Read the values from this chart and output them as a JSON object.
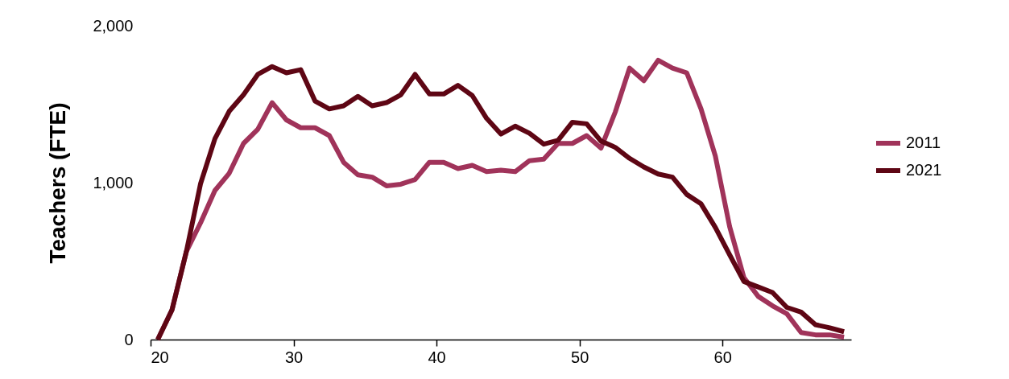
{
  "chart_data": {
    "type": "line",
    "ylabel": "Teachers (FTE)",
    "x": [
      20.5,
      21.5,
      22.5,
      23.5,
      24.5,
      25.5,
      26.5,
      27.5,
      28.5,
      29.5,
      30.5,
      31.5,
      32.5,
      33.5,
      34.5,
      35.5,
      36.5,
      37.5,
      38.5,
      39.5,
      40.5,
      41.5,
      42.5,
      43.5,
      44.5,
      45.5,
      46.5,
      47.5,
      48.5,
      49.5,
      50.5,
      51.5,
      52.5,
      53.5,
      54.5,
      55.5,
      56.5,
      57.5,
      58.5,
      59.5,
      60.5,
      61.5,
      62.5,
      63.5,
      64.5,
      65.5,
      66.5,
      67.5,
      68.5
    ],
    "series": [
      {
        "name": "2011",
        "color": "#a0335a",
        "values": [
          0,
          190,
          560,
          745,
          950,
          1060,
          1250,
          1340,
          1510,
          1400,
          1350,
          1350,
          1300,
          1130,
          1050,
          1035,
          980,
          990,
          1020,
          1130,
          1130,
          1090,
          1110,
          1070,
          1080,
          1070,
          1140,
          1150,
          1250,
          1250,
          1300,
          1220,
          1450,
          1730,
          1650,
          1780,
          1730,
          1700,
          1470,
          1170,
          720,
          395,
          275,
          215,
          165,
          45,
          30,
          30,
          15
        ]
      },
      {
        "name": "2021",
        "color": "#5e0614",
        "values": [
          0,
          190,
          560,
          995,
          1280,
          1455,
          1560,
          1690,
          1740,
          1700,
          1720,
          1520,
          1470,
          1490,
          1550,
          1490,
          1510,
          1560,
          1690,
          1565,
          1565,
          1620,
          1555,
          1410,
          1310,
          1360,
          1315,
          1245,
          1270,
          1385,
          1375,
          1265,
          1225,
          1155,
          1100,
          1055,
          1035,
          925,
          865,
          715,
          540,
          370,
          335,
          300,
          205,
          175,
          95,
          75,
          50
        ]
      }
    ],
    "xlim": [
      20,
      69
    ],
    "xticks": [
      20,
      30,
      40,
      50,
      60
    ],
    "ylim": [
      0,
      2000
    ],
    "yticks": [
      0,
      {
        "value": 1000,
        "label": "1,000"
      },
      {
        "value": 2000,
        "label": "2,000"
      }
    ],
    "legend": "right",
    "grid": false
  }
}
